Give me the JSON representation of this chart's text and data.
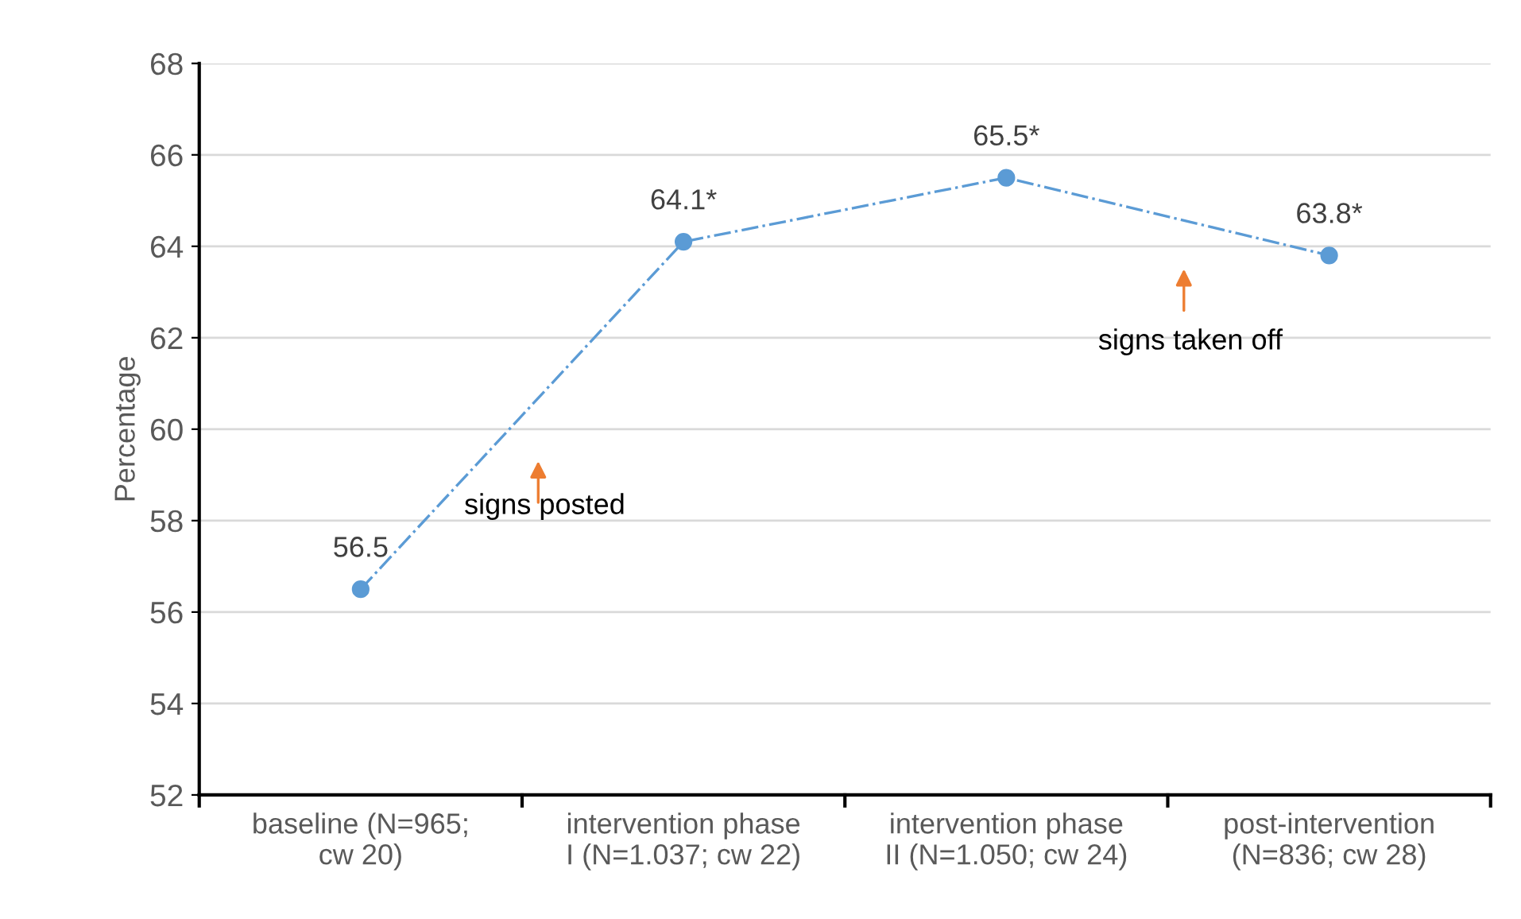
{
  "chart_data": {
    "type": "line",
    "ylabel": "Percentage",
    "categories": [
      "baseline (N=965;\ncw 20)",
      "intervention phase\nI (N=1.037; cw 22)",
      "intervention phase\nII (N=1.050; cw 24)",
      "post-intervention\n(N=836; cw 28)"
    ],
    "series": [
      {
        "color": "#5b9bd5",
        "values": [
          56.5,
          64.1,
          65.5,
          63.8
        ],
        "value_labels": [
          "56.5",
          "64.1*",
          "65.5*",
          "63.8*"
        ]
      }
    ],
    "ylim": [
      52,
      68
    ],
    "yticks": [
      52,
      54,
      56,
      58,
      60,
      62,
      64,
      66,
      68
    ],
    "grid": "y",
    "marker": "circle",
    "line_style": "dashdot",
    "annotations": [
      "signs posted",
      "signs taken off"
    ]
  }
}
